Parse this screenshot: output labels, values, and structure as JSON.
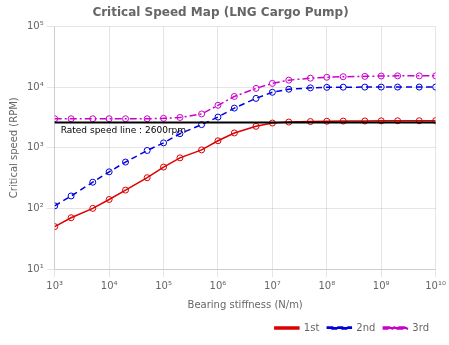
{
  "chart_data": {
    "type": "line",
    "title": "Critical Speed Map (LNG Cargo Pump)",
    "xlabel": "Bearing stiffness (N/m)",
    "ylabel": "Critical speed (RPM)",
    "x": [
      1000,
      2000,
      5000,
      10000,
      20000,
      50000,
      100000,
      200000,
      500000,
      1000000,
      2000000,
      5000000,
      10000000,
      20000000,
      50000000,
      100000000,
      200000000,
      500000000,
      1000000000,
      2000000000,
      5000000000,
      10000000000
    ],
    "series": [
      {
        "name": "1st",
        "color": "#dd0000",
        "line_style": "solid",
        "marker": "circle",
        "values": [
          50,
          70,
          100,
          140,
          200,
          320,
          480,
          680,
          920,
          1300,
          1750,
          2250,
          2550,
          2650,
          2700,
          2730,
          2750,
          2760,
          2770,
          2780,
          2780,
          2790
        ]
      },
      {
        "name": "2nd",
        "color": "#0000dd",
        "line_style": "dashed",
        "marker": "circle",
        "values": [
          110,
          160,
          270,
          400,
          580,
          900,
          1200,
          1700,
          2400,
          3200,
          4500,
          6500,
          8200,
          9200,
          9700,
          9900,
          9950,
          9980,
          9990,
          9995,
          9998,
          9999
        ]
      },
      {
        "name": "3rd",
        "color": "#cc00cc",
        "line_style": "dashdot",
        "marker": "circle",
        "values": [
          3000,
          3000,
          3000,
          3000,
          3000,
          3000,
          3050,
          3150,
          3600,
          5000,
          7000,
          9500,
          11500,
          13000,
          14000,
          14500,
          14800,
          15000,
          15200,
          15300,
          15300,
          15300
        ]
      }
    ],
    "annotations": [
      {
        "text": "Rated speed line : 2600rpm",
        "y": 2600
      }
    ],
    "log": true,
    "xlim": [
      1000,
      10000000000
    ],
    "ylim": [
      10,
      100000
    ],
    "xticks": [
      {
        "value": 1000,
        "label": "10³"
      },
      {
        "value": 10000,
        "label": "10⁴"
      },
      {
        "value": 100000,
        "label": "10⁵"
      },
      {
        "value": 1000000,
        "label": "10⁶"
      },
      {
        "value": 10000000,
        "label": "10⁷"
      },
      {
        "value": 100000000,
        "label": "10⁸"
      },
      {
        "value": 1000000000,
        "label": "10⁹"
      },
      {
        "value": 10000000000,
        "label": "10¹⁰"
      }
    ],
    "yticks": [
      {
        "value": 10,
        "label": "10¹"
      },
      {
        "value": 100,
        "label": "10²"
      },
      {
        "value": 1000,
        "label": "10³"
      },
      {
        "value": 10000,
        "label": "10⁴"
      },
      {
        "value": 100000,
        "label": "10⁵"
      }
    ],
    "grid": true,
    "legend": "lower right"
  }
}
